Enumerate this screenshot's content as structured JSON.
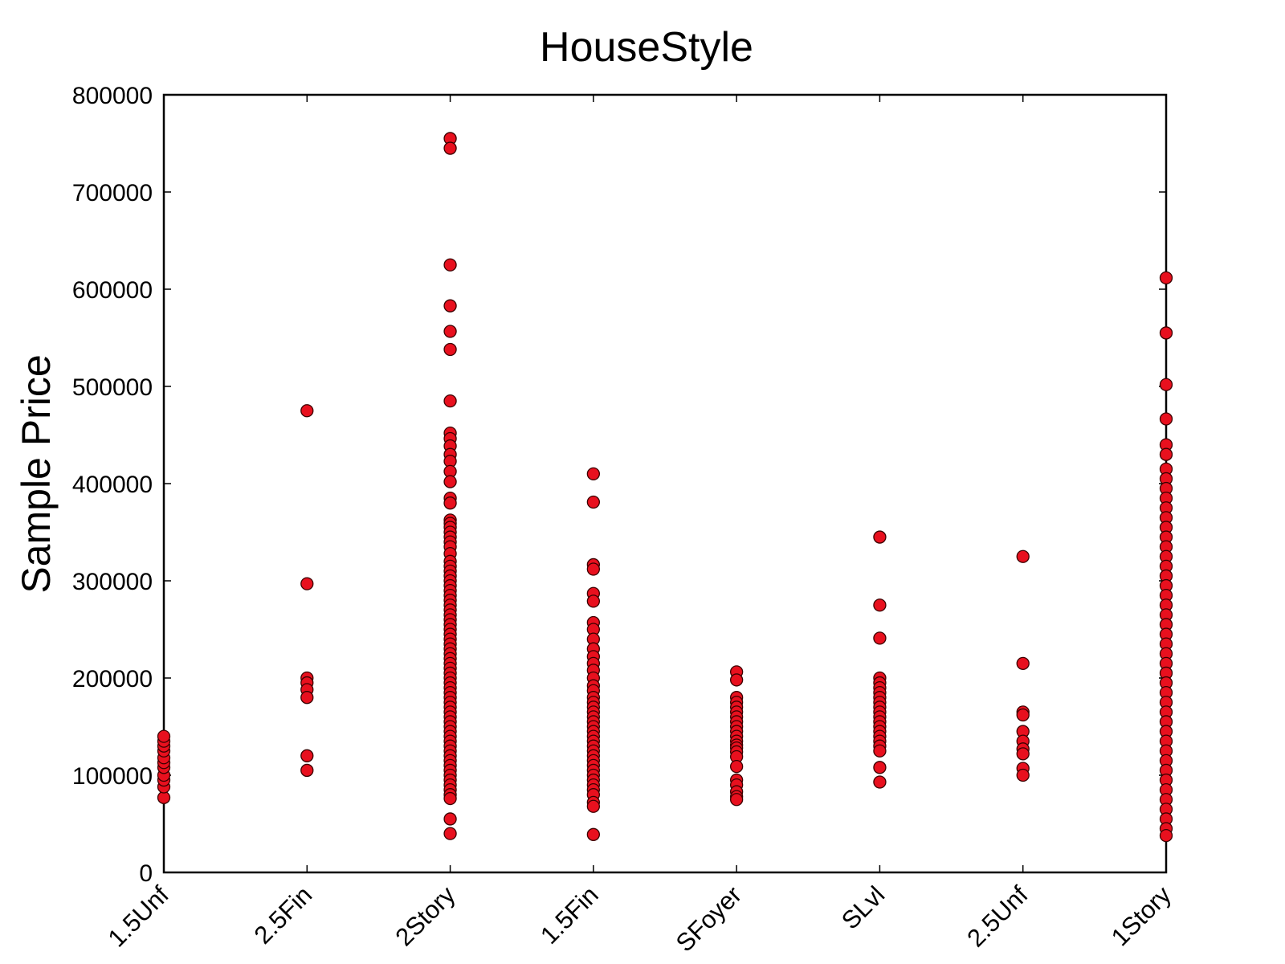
{
  "chart_data": {
    "type": "scatter",
    "title": "HouseStyle",
    "xlabel": "",
    "ylabel": "Sample Price",
    "ylim": [
      0,
      800000
    ],
    "yticks": [
      0,
      100000,
      200000,
      300000,
      400000,
      500000,
      600000,
      700000,
      800000
    ],
    "ytick_labels": [
      "0",
      "100000",
      "200000",
      "300000",
      "400000",
      "500000",
      "600000",
      "700000",
      "800000"
    ],
    "categories": [
      "1.5Unf",
      "2.5Fin",
      "2Story",
      "1.5Fin",
      "SFoyer",
      "SLvl",
      "2.5Unf",
      "1Story"
    ],
    "grid": false,
    "marker_color": "#e8101e",
    "marker_edge_color": "#3a0000",
    "series": [
      {
        "values": [
          {
            "x": "1.5Unf",
            "y": [
              77000,
              88000,
              95000,
              100000,
              108000,
              113000,
              118000,
              125000,
              130000,
              135000,
              140000
            ]
          },
          {
            "x": "2.5Fin",
            "y": [
              475000,
              297000,
              200000,
              195000,
              188000,
              180000,
              120000,
              105000
            ]
          },
          {
            "x": "2Story",
            "y": [
              755000,
              745000,
              625000,
              582900,
              556581,
              538000,
              485000,
              451950,
              446261,
              438780,
              430000,
              423000,
              412500,
              402000,
              385000,
              380000,
              362500,
              359100,
              355000,
              350000,
              345000,
              340000,
              335000,
              328000,
              320000,
              315000,
              310000,
              305000,
              300000,
              295000,
              290000,
              285000,
              280000,
              275000,
              270000,
              265000,
              260000,
              255000,
              250000,
              245000,
              240000,
              235000,
              230000,
              225000,
              220000,
              215000,
              210000,
              205000,
              200000,
              195000,
              190000,
              185000,
              180000,
              175000,
              170000,
              165000,
              160000,
              155000,
              150000,
              145000,
              140000,
              135000,
              130000,
              125000,
              120000,
              115000,
              110000,
              105000,
              100000,
              95000,
              90000,
              85000,
              80000,
              76000,
              55000,
              40000
            ]
          },
          {
            "x": "1.5Fin",
            "y": [
              410000,
              381000,
              316600,
              312000,
              287000,
              279000,
              257000,
              250000,
              240000,
              230000,
              222000,
              215000,
              208000,
              200000,
              192000,
              187000,
              180000,
              175000,
              170000,
              165000,
              160000,
              155000,
              150000,
              145000,
              140000,
              135000,
              130000,
              125000,
              120000,
              115000,
              110000,
              105000,
              100000,
              95000,
              90000,
              85000,
              80000,
              72000,
              68000,
              39000
            ]
          },
          {
            "x": "SFoyer",
            "y": [
              206300,
              198000,
              180000,
              175000,
              170000,
              165000,
              160000,
              155000,
              150000,
              145000,
              140000,
              135000,
              131000,
              128000,
              124000,
              119000,
              109000,
              95000,
              90000,
              83000,
              78000,
              75000
            ]
          },
          {
            "x": "SLvl",
            "y": [
              345000,
              275000,
              241000,
              200000,
              195000,
              190000,
              185000,
              180000,
              175000,
              170000,
              165000,
              160000,
              155000,
              150000,
              145000,
              140000,
              135000,
              130000,
              125000,
              108000,
              93000
            ]
          },
          {
            "x": "2.5Unf",
            "y": [
              325000,
              215000,
              165000,
              162000,
              145000,
              135000,
              127000,
              122000,
              107000,
              100000
            ]
          },
          {
            "x": "1Story",
            "y": [
              611657,
              555000,
              501837,
              466500,
              440000,
              430000,
              415000,
              405000,
              395000,
              385000,
              375000,
              365000,
              355000,
              345000,
              335000,
              325000,
              315000,
              305000,
              295000,
              285000,
              275000,
              265000,
              255000,
              245000,
              235000,
              225000,
              215000,
              205000,
              195000,
              185000,
              175000,
              165000,
              155000,
              145000,
              135000,
              125000,
              115000,
              105000,
              95000,
              85000,
              75000,
              65000,
              55000,
              45000,
              37900
            ]
          }
        ]
      }
    ]
  }
}
